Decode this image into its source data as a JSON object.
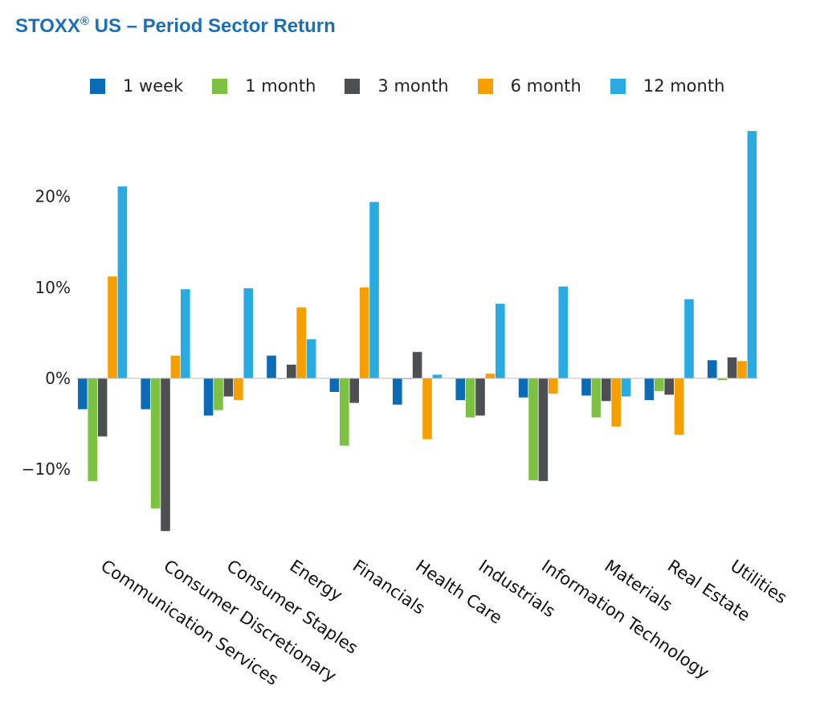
{
  "title": "STOXX",
  "title_mark": "®",
  "title_rest": " US – Period Sector Return",
  "chart_data": {
    "type": "bar",
    "title": "STOXX® US – Period Sector Return",
    "xlabel": "",
    "ylabel": "",
    "ylim": [
      -18,
      28
    ],
    "yticks": [
      20,
      10,
      0,
      -10
    ],
    "ytick_labels": [
      "20%",
      "10%",
      "0%",
      "−10%"
    ],
    "grid": false,
    "legend_position": "top",
    "categories": [
      "Communication Services",
      "Consumer Discretionary",
      "Consumer Staples",
      "Energy",
      "Financials",
      "Health Care",
      "Industrials",
      "Information Technology",
      "Materials",
      "Real Estate",
      "Utilities"
    ],
    "series": [
      {
        "name": "1 week",
        "color": "#0b6bb5",
        "values": [
          -3.4,
          -3.4,
          -4.1,
          2.5,
          -1.5,
          -2.9,
          -2.4,
          -2.1,
          -1.9,
          -2.4,
          2.0
        ]
      },
      {
        "name": "1 month",
        "color": "#7dc142",
        "values": [
          -11.3,
          -14.3,
          -3.5,
          0.0,
          -7.4,
          -0.1,
          -4.3,
          -11.2,
          -4.3,
          -1.4,
          -0.2
        ]
      },
      {
        "name": "3 month",
        "color": "#4d4f53",
        "values": [
          -6.4,
          -16.8,
          -2.0,
          1.5,
          -2.7,
          2.9,
          -4.1,
          -11.3,
          -2.5,
          -1.8,
          2.3
        ]
      },
      {
        "name": "6 month",
        "color": "#f59f00",
        "values": [
          11.2,
          2.5,
          -2.4,
          7.8,
          10.0,
          -6.7,
          0.5,
          -1.7,
          -5.3,
          -6.2,
          1.9
        ]
      },
      {
        "name": "12 month",
        "color": "#29abe2",
        "values": [
          21.1,
          9.8,
          9.9,
          4.3,
          19.4,
          0.4,
          8.2,
          10.1,
          -2.0,
          8.7,
          27.2
        ]
      }
    ]
  }
}
